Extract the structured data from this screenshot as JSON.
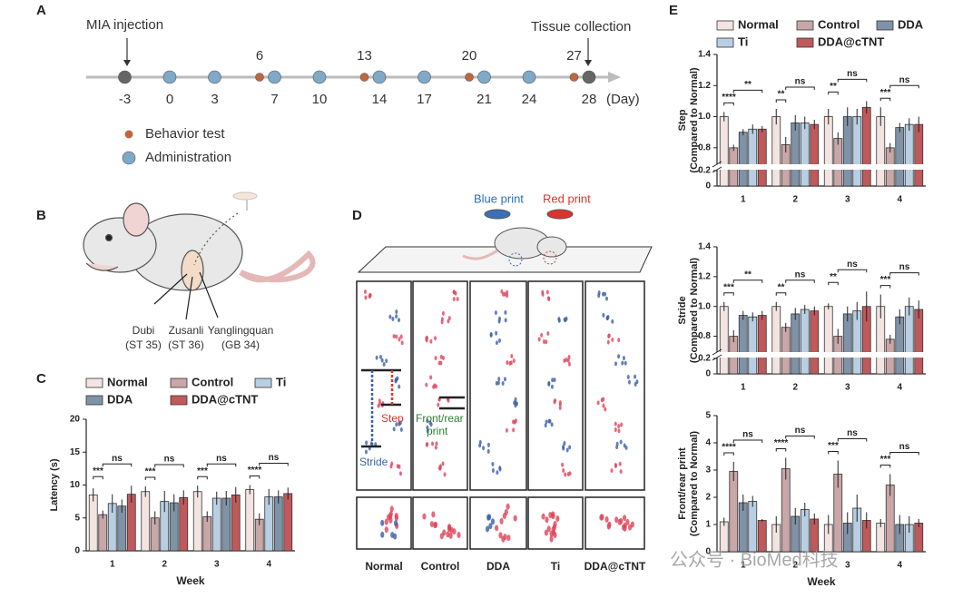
{
  "panel_letters": [
    "A",
    "B",
    "C",
    "D",
    "E"
  ],
  "timeline": {
    "start_label": "MIA injection",
    "end_label": "Tissue collection",
    "unit": "(Day)",
    "endpoint_days": [
      -3,
      28
    ],
    "administration_days": [
      0,
      3,
      7,
      10,
      14,
      17,
      21,
      24
    ],
    "behavior_days": [
      6,
      13,
      20,
      27
    ],
    "behavior_label": "Behavior test",
    "administration_label": "Administration",
    "behavior_color": "#c0663f",
    "administration_color": "#7fa9c7",
    "endpoint_color": "#666666"
  },
  "mouse": {
    "acupoints": [
      {
        "name": "Dubi",
        "code": "(ST 35)"
      },
      {
        "name": "Zusanli",
        "code": "(ST 36)"
      },
      {
        "name": "Yanglingquan",
        "code": "(GB 34)"
      }
    ]
  },
  "gait": {
    "blue_label": "Blue print",
    "red_label": "Red print",
    "step_label": "Step",
    "front_rear_label": [
      "Front/rear",
      "print"
    ],
    "stride_label": "Stride",
    "groups": [
      "Normal",
      "Control",
      "DDA",
      "Ti",
      "DDA@cTNT"
    ]
  },
  "watermark": "公众号 · BioMed科技",
  "chart_data": [
    {
      "type": "bar",
      "panel": "C",
      "legend": true,
      "y_label": [
        "Latency (s)"
      ],
      "x_label": "Week",
      "categories": [
        "1",
        "2",
        "3",
        "4"
      ],
      "series": [
        {
          "name": "Normal",
          "color": "#f3e4e2",
          "values": [
            8.5,
            9,
            9,
            9.3
          ],
          "errors": [
            1,
            0.8,
            0.9,
            0.7
          ]
        },
        {
          "name": "Control",
          "color": "#c9a6a7",
          "values": [
            5.5,
            5,
            5.2,
            4.8
          ],
          "errors": [
            0.6,
            1,
            0.8,
            0.9
          ]
        },
        {
          "name": "Ti",
          "color": "#b8cfe3",
          "values": [
            7.2,
            7.5,
            8,
            8.2
          ],
          "errors": [
            1.4,
            1.6,
            1,
            1.2
          ]
        },
        {
          "name": "DDA",
          "color": "#7f93a8",
          "values": [
            6.8,
            7.3,
            8,
            8.2
          ],
          "errors": [
            1,
            1.3,
            1.1,
            1
          ]
        },
        {
          "name": "DDA@cTNT",
          "color": "#c0595b",
          "values": [
            8.6,
            8.1,
            8.5,
            8.7
          ],
          "errors": [
            1.3,
            1.1,
            1.2,
            0.9
          ]
        }
      ],
      "ylim": [
        0,
        20
      ],
      "yticks": [
        0,
        5,
        10,
        15,
        20
      ],
      "annotations": {
        "normal_vs_control": [
          "***",
          "***",
          "***",
          "****"
        ],
        "control_vs_treatments": [
          "ns",
          "ns",
          "ns",
          "ns"
        ]
      }
    },
    {
      "type": "bar",
      "panel": "E",
      "legend": true,
      "y_label": [
        "Step",
        "(Compared to Normal)"
      ],
      "categories": [
        "1",
        "2",
        "3",
        "4"
      ],
      "series": [
        {
          "name": "Normal",
          "color": "#f3e4e2",
          "values": [
            1.0,
            1.0,
            1.0,
            1.0
          ],
          "errors": [
            0.03,
            0.05,
            0.05,
            0.06
          ]
        },
        {
          "name": "Control",
          "color": "#c9a6a7",
          "values": [
            0.8,
            0.82,
            0.86,
            0.8
          ],
          "errors": [
            0.02,
            0.05,
            0.04,
            0.03
          ]
        },
        {
          "name": "DDA",
          "color": "#7f93a8",
          "values": [
            0.9,
            0.96,
            1.0,
            0.93
          ],
          "errors": [
            0.02,
            0.05,
            0.06,
            0.03
          ]
        },
        {
          "name": "Ti",
          "color": "#b8cfe3",
          "values": [
            0.92,
            0.96,
            1.0,
            0.95
          ],
          "errors": [
            0.03,
            0.04,
            0.05,
            0.04
          ]
        },
        {
          "name": "DDA@cTNT",
          "color": "#c0595b",
          "values": [
            0.92,
            0.95,
            1.06,
            0.95
          ],
          "errors": [
            0.02,
            0.03,
            0.04,
            0.05
          ]
        }
      ],
      "ylim": [
        0,
        1.4
      ],
      "axis_break": [
        0.2,
        0.7
      ],
      "yticks": [
        0,
        0.2,
        0.8,
        {
          "value": 1,
          "label": "1.0"
        },
        1.2,
        1.4
      ],
      "annotations": {
        "normal_vs_control": [
          "****",
          "**",
          "**",
          "***"
        ],
        "control_vs_treatments": [
          "**",
          "ns",
          "ns",
          "ns"
        ]
      }
    },
    {
      "type": "bar",
      "panel": "",
      "y_label": [
        "Stride",
        "(Compared to Normal)"
      ],
      "categories": [
        "1",
        "2",
        "3",
        "4"
      ],
      "series": [
        {
          "name": "Normal",
          "color": "#f3e4e2",
          "values": [
            1.0,
            1.0,
            1.0,
            1.0
          ],
          "errors": [
            0.03,
            0.03,
            0.02,
            0.08
          ]
        },
        {
          "name": "Control",
          "color": "#c9a6a7",
          "values": [
            0.8,
            0.86,
            0.8,
            0.78
          ],
          "errors": [
            0.04,
            0.03,
            0.05,
            0.03
          ]
        },
        {
          "name": "DDA",
          "color": "#7f93a8",
          "values": [
            0.94,
            0.95,
            0.95,
            0.93
          ],
          "errors": [
            0.03,
            0.04,
            0.05,
            0.05
          ]
        },
        {
          "name": "Ti",
          "color": "#b8cfe3",
          "values": [
            0.93,
            0.98,
            0.97,
            1.0
          ],
          "errors": [
            0.03,
            0.03,
            0.06,
            0.06
          ]
        },
        {
          "name": "DDA@cTNT",
          "color": "#c0595b",
          "values": [
            0.94,
            0.97,
            1.0,
            0.98
          ],
          "errors": [
            0.03,
            0.03,
            0.1,
            0.06
          ]
        }
      ],
      "ylim": [
        0,
        1.4
      ],
      "axis_break": [
        0.2,
        0.7
      ],
      "yticks": [
        0,
        0.2,
        0.8,
        {
          "value": 1,
          "label": "1.0"
        },
        1.2,
        1.4
      ],
      "annotations": {
        "normal_vs_control": [
          "***",
          "**",
          "**",
          "***"
        ],
        "control_vs_treatments": [
          "**",
          "ns",
          "ns",
          "ns"
        ]
      }
    },
    {
      "type": "bar",
      "panel": "",
      "y_label": [
        "Front/rear print",
        "(Compared to Normal)"
      ],
      "x_label": "Week",
      "categories": [
        "1",
        "2",
        "3",
        "4"
      ],
      "series": [
        {
          "name": "Normal",
          "color": "#f3e4e2",
          "values": [
            1.1,
            1.0,
            1.0,
            1.05
          ],
          "errors": [
            0.15,
            0.3,
            0.35,
            0.15
          ]
        },
        {
          "name": "Control",
          "color": "#c9a6a7",
          "values": [
            2.95,
            3.05,
            2.85,
            2.45
          ],
          "errors": [
            0.35,
            0.4,
            0.5,
            0.4
          ]
        },
        {
          "name": "DDA",
          "color": "#7f93a8",
          "values": [
            1.8,
            1.3,
            1.05,
            1.0
          ],
          "errors": [
            0.3,
            0.3,
            0.4,
            0.35
          ]
        },
        {
          "name": "Ti",
          "color": "#b8cfe3",
          "values": [
            1.85,
            1.55,
            1.6,
            1.0
          ],
          "errors": [
            0.2,
            0.25,
            0.5,
            0.3
          ]
        },
        {
          "name": "DDA@cTNT",
          "color": "#c0595b",
          "values": [
            1.15,
            1.2,
            1.15,
            1.05
          ],
          "errors": [
            0.05,
            0.2,
            0.3,
            0.15
          ]
        }
      ],
      "ylim": [
        0,
        5
      ],
      "yticks": [
        0,
        1,
        2,
        3,
        4,
        5
      ],
      "annotations": {
        "normal_vs_control": [
          "****",
          "****",
          "***",
          "***"
        ],
        "control_vs_treatments": [
          "ns",
          "ns",
          "ns",
          "ns"
        ]
      }
    }
  ]
}
